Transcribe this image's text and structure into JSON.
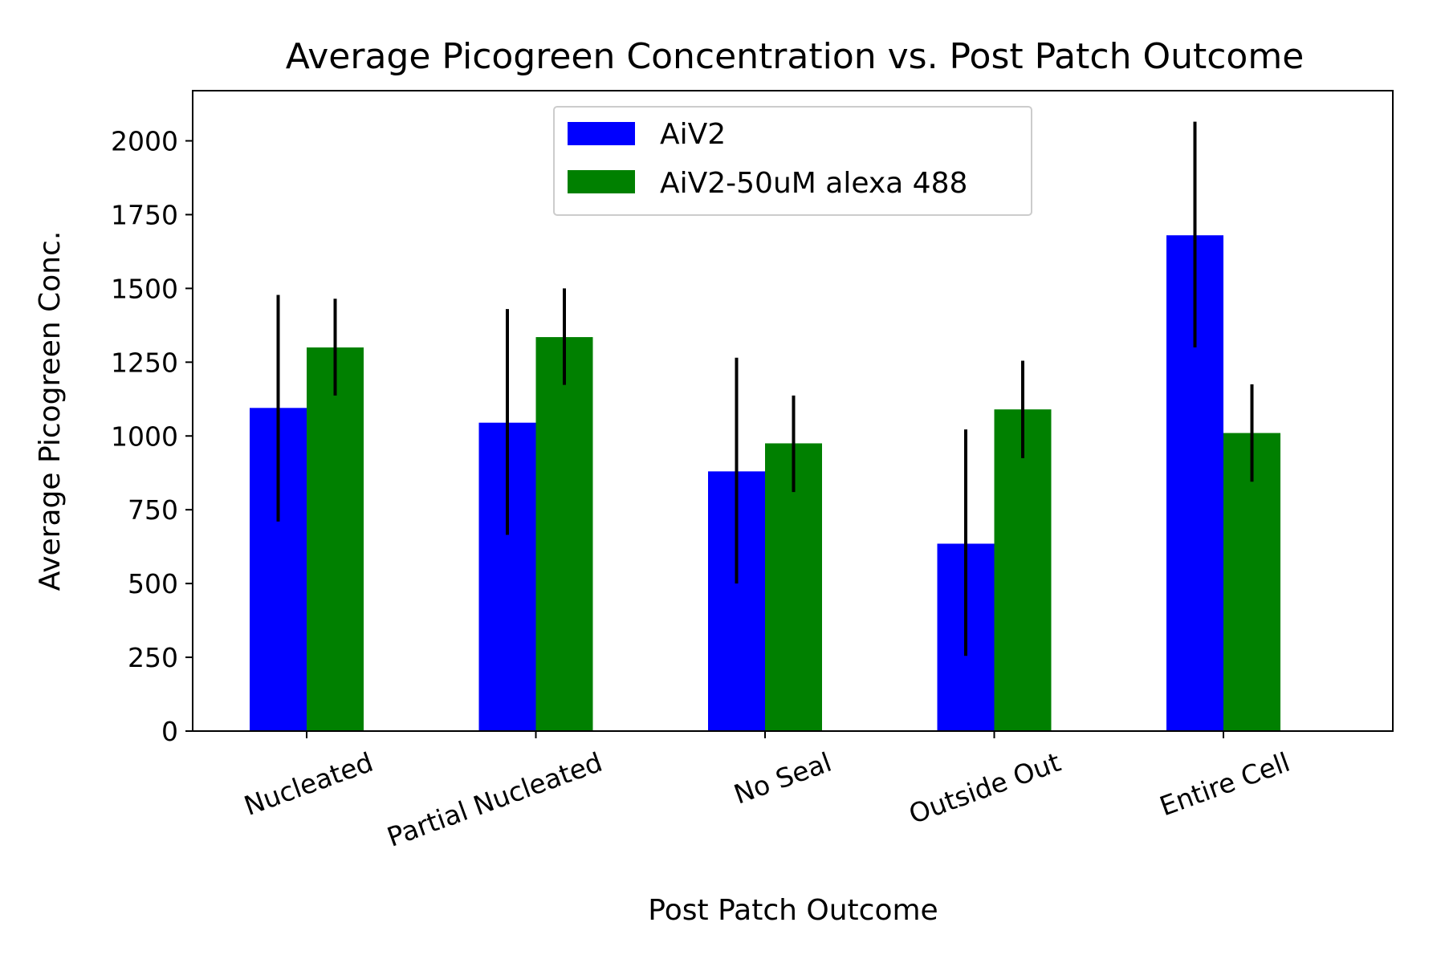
{
  "chart_data": {
    "type": "bar",
    "title": "Average Picogreen Concentration vs. Post Patch Outcome",
    "xlabel": "Post Patch Outcome",
    "ylabel": "Average Picogreen Conc.",
    "categories": [
      "Nucleated",
      "Partial Nucleated",
      "No Seal",
      "Outside Out",
      "Entire Cell"
    ],
    "y_ticks": [
      "0",
      "250",
      "500",
      "750",
      "1000",
      "1250",
      "1500",
      "1750",
      "2000"
    ],
    "ylim": [
      0,
      2170
    ],
    "grid": false,
    "legend_position": "upper center",
    "series": [
      {
        "name": "AiV2",
        "color": "#0000ff",
        "values": [
          1095,
          1045,
          880,
          635,
          1680
        ],
        "error_low": [
          710,
          665,
          500,
          255,
          1300
        ],
        "error_high": [
          1478,
          1430,
          1265,
          1022,
          2065
        ]
      },
      {
        "name": "AiV2-50uM alexa 488",
        "color": "#008000",
        "values": [
          1300,
          1335,
          975,
          1090,
          1010
        ],
        "error_low": [
          1137,
          1173,
          810,
          925,
          845
        ],
        "error_high": [
          1465,
          1500,
          1137,
          1255,
          1175
        ]
      }
    ],
    "errorbar_color": "#000000"
  }
}
